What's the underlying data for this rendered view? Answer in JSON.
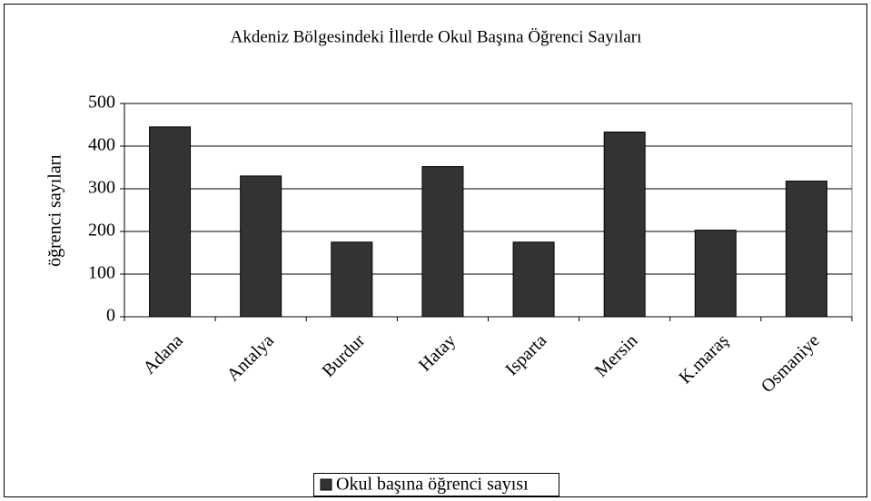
{
  "chart_data": {
    "type": "bar",
    "title": "Akdeniz Bölgesindeki İllerde Okul Başına Öğrenci Sayıları",
    "y_label": "öğrenci sayıları",
    "categories": [
      "Adana",
      "Antalya",
      "Burdur",
      "Hatay",
      "Isparta",
      "Mersin",
      "K.maraş",
      "Osmaniye"
    ],
    "series": [
      {
        "name": "Okul başına öğrenci sayısı",
        "color": "#333333",
        "values": [
          445,
          330,
          175,
          352,
          175,
          433,
          203,
          318
        ]
      }
    ],
    "ylim": [
      0,
      500
    ],
    "yticks": [
      0,
      100,
      200,
      300,
      400,
      500
    ],
    "grid": true,
    "legend": "bottom"
  }
}
